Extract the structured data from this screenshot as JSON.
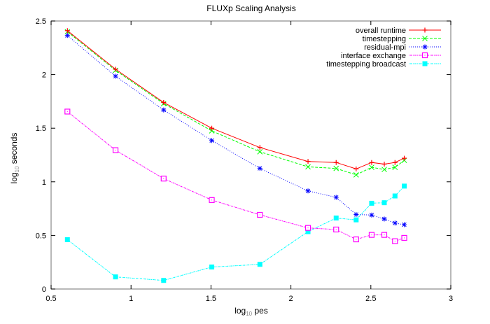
{
  "chart_data": {
    "type": "line",
    "title": "FLUXp Scaling Analysis",
    "xlabel": {
      "base": "log",
      "sub": "10",
      "rest": " pes"
    },
    "ylabel": {
      "base": "log",
      "sub": "10",
      "rest": " seconds"
    },
    "xlim": [
      0.5,
      3
    ],
    "ylim": [
      0,
      2.5
    ],
    "xticks": [
      0.5,
      1,
      1.5,
      2,
      2.5,
      3
    ],
    "xtick_labels": [
      "0.5",
      "1",
      "1.5",
      "2",
      "2.5",
      "3"
    ],
    "yticks": [
      0,
      0.5,
      1,
      1.5,
      2,
      2.5
    ],
    "ytick_labels": [
      "0",
      "0.5",
      "1",
      "1.5",
      "2",
      "2.5"
    ],
    "grid": false,
    "legend_position": "top-right",
    "x": [
      0.602,
      0.903,
      1.204,
      1.505,
      1.806,
      2.107,
      2.283,
      2.408,
      2.505,
      2.584,
      2.651,
      2.709
    ],
    "series": [
      {
        "name": "overall runtime",
        "color": "#ff0000",
        "marker": "plus",
        "dash": "solid",
        "values": [
          2.41,
          2.05,
          1.74,
          1.5,
          1.32,
          1.19,
          1.18,
          1.12,
          1.18,
          1.165,
          1.18,
          1.22
        ]
      },
      {
        "name": "timestepping",
        "color": "#00ff00",
        "marker": "cross",
        "dash": "dashed",
        "values": [
          2.4,
          2.04,
          1.73,
          1.475,
          1.28,
          1.14,
          1.125,
          1.065,
          1.135,
          1.115,
          1.135,
          1.2
        ]
      },
      {
        "name": "residual-mpi",
        "color": "#0000ff",
        "marker": "star",
        "dash": "dotted",
        "values": [
          2.365,
          1.985,
          1.67,
          1.385,
          1.125,
          0.915,
          0.855,
          0.695,
          0.69,
          0.653,
          0.615,
          0.6
        ]
      },
      {
        "name": "interface exchange",
        "color": "#ff00ff",
        "marker": "open-square",
        "dash": "dashdot",
        "values": [
          1.655,
          1.295,
          1.03,
          0.83,
          0.692,
          0.57,
          0.555,
          0.463,
          0.505,
          0.505,
          0.446,
          0.477
        ]
      },
      {
        "name": "timestepping broadcast",
        "color": "#00ffff",
        "marker": "filled-square",
        "dash": "dashdot",
        "values": [
          0.46,
          0.113,
          0.08,
          0.205,
          0.23,
          0.535,
          0.662,
          0.645,
          0.8,
          0.805,
          0.868,
          0.96
        ]
      }
    ]
  }
}
